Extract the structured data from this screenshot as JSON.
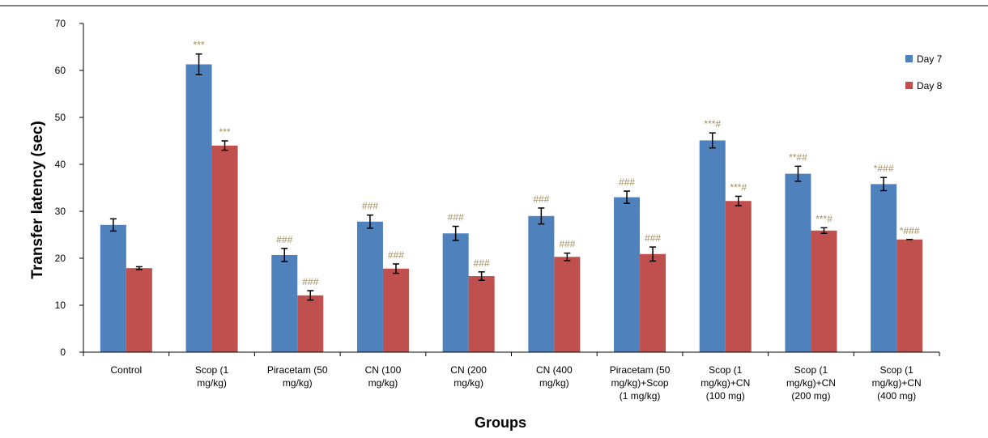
{
  "chart_data": {
    "type": "bar",
    "title": "",
    "xlabel": "Groups",
    "ylabel": "Transfer latency (sec)",
    "ylim": [
      0,
      70
    ],
    "yticks": [
      0,
      10,
      20,
      30,
      40,
      50,
      60,
      70
    ],
    "grid": false,
    "legend_position": "top-right",
    "categories": [
      [
        "Control"
      ],
      [
        "Scop (1",
        "mg/kg)"
      ],
      [
        "Piracetam (50",
        "mg/kg)"
      ],
      [
        "CN (100",
        "mg/kg)"
      ],
      [
        "CN (200",
        "mg/kg)"
      ],
      [
        "CN (400",
        "mg/kg)"
      ],
      [
        "Piracetam (50",
        "mg/kg)+Scop",
        "(1 mg/kg)"
      ],
      [
        "Scop (1",
        "mg/kg)+CN",
        "(100 mg)"
      ],
      [
        "Scop (1",
        "mg/kg)+CN",
        "(200 mg)"
      ],
      [
        "Scop (1",
        "mg/kg)+CN",
        "(400 mg)"
      ]
    ],
    "series": [
      {
        "name": "Day 7",
        "color": "#4F81BD",
        "values": [
          27.1,
          61.3,
          20.7,
          27.8,
          25.3,
          29.0,
          33.0,
          45.1,
          38.0,
          35.8
        ],
        "errors": [
          1.3,
          2.2,
          1.4,
          1.4,
          1.5,
          1.7,
          1.3,
          1.6,
          1.6,
          1.4
        ],
        "annotations": [
          "",
          "***",
          "###",
          "###",
          "###",
          "###",
          "###",
          "***#",
          "**##",
          "*###"
        ]
      },
      {
        "name": "Day 8",
        "color": "#C0504D",
        "values": [
          17.9,
          44.0,
          12.1,
          17.8,
          16.2,
          20.3,
          20.9,
          32.2,
          25.9,
          24.0
        ],
        "errors": [
          0.3,
          1.0,
          1.0,
          1.0,
          0.9,
          0.8,
          1.5,
          1.0,
          0.6,
          0.0
        ],
        "annotations": [
          "",
          "***",
          "###",
          "###",
          "###",
          "###",
          "###",
          "***#",
          "***#",
          "*###"
        ]
      }
    ]
  }
}
